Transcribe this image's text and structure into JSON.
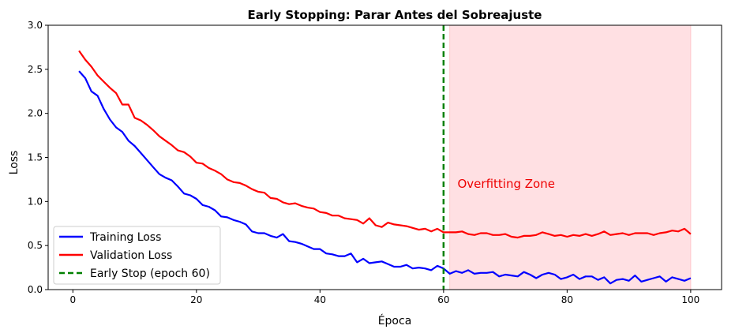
{
  "chart_data": {
    "type": "line",
    "title": "Early Stopping: Parar Antes del Sobreajuste",
    "xlabel": "Época",
    "ylabel": "Loss",
    "xlim": [
      -4,
      105
    ],
    "ylim": [
      0,
      3.0
    ],
    "xticks": [
      0,
      20,
      40,
      60,
      80,
      100
    ],
    "yticks": [
      0.0,
      0.5,
      1.0,
      1.5,
      2.0,
      2.5,
      3.0
    ],
    "xtick_labels": [
      "0",
      "20",
      "40",
      "60",
      "80",
      "100"
    ],
    "ytick_labels": [
      "0.0",
      "0.5",
      "1.0",
      "1.5",
      "2.0",
      "2.5",
      "3.0"
    ],
    "grid": false,
    "legend_position": "lower-left",
    "series": [
      {
        "name": "Training Loss",
        "color": "#0000ff",
        "x": [
          1,
          2,
          3,
          4,
          5,
          6,
          7,
          8,
          9,
          10,
          11,
          12,
          13,
          14,
          15,
          16,
          17,
          18,
          19,
          20,
          21,
          22,
          23,
          24,
          25,
          26,
          27,
          28,
          29,
          30,
          31,
          32,
          33,
          34,
          35,
          36,
          37,
          38,
          39,
          40,
          41,
          42,
          43,
          44,
          45,
          46,
          47,
          48,
          49,
          50,
          51,
          52,
          53,
          54,
          55,
          56,
          57,
          58,
          59,
          60,
          61,
          62,
          63,
          64,
          65,
          66,
          67,
          68,
          69,
          70,
          71,
          72,
          73,
          74,
          75,
          76,
          77,
          78,
          79,
          80,
          81,
          82,
          83,
          84,
          85,
          86,
          87,
          88,
          89,
          90,
          91,
          92,
          93,
          94,
          95,
          96,
          97,
          98,
          99,
          100
        ],
        "values": [
          2.48,
          2.4,
          2.25,
          2.2,
          2.05,
          1.93,
          1.84,
          1.79,
          1.69,
          1.63,
          1.55,
          1.47,
          1.39,
          1.31,
          1.27,
          1.24,
          1.17,
          1.09,
          1.07,
          1.03,
          0.96,
          0.94,
          0.9,
          0.83,
          0.82,
          0.79,
          0.77,
          0.74,
          0.66,
          0.64,
          0.64,
          0.61,
          0.59,
          0.63,
          0.55,
          0.54,
          0.52,
          0.49,
          0.46,
          0.46,
          0.41,
          0.4,
          0.38,
          0.38,
          0.41,
          0.31,
          0.35,
          0.3,
          0.31,
          0.32,
          0.29,
          0.26,
          0.26,
          0.28,
          0.24,
          0.25,
          0.24,
          0.22,
          0.27,
          0.24,
          0.18,
          0.21,
          0.19,
          0.22,
          0.18,
          0.19,
          0.19,
          0.2,
          0.15,
          0.17,
          0.16,
          0.15,
          0.2,
          0.17,
          0.13,
          0.17,
          0.19,
          0.17,
          0.12,
          0.14,
          0.17,
          0.12,
          0.15,
          0.15,
          0.11,
          0.14,
          0.07,
          0.11,
          0.12,
          0.1,
          0.16,
          0.09,
          0.11,
          0.13,
          0.15,
          0.09,
          0.14,
          0.12,
          0.1,
          0.13
        ]
      },
      {
        "name": "Validation Loss",
        "color": "#ff0000",
        "x": [
          1,
          2,
          3,
          4,
          5,
          6,
          7,
          8,
          9,
          10,
          11,
          12,
          13,
          14,
          15,
          16,
          17,
          18,
          19,
          20,
          21,
          22,
          23,
          24,
          25,
          26,
          27,
          28,
          29,
          30,
          31,
          32,
          33,
          34,
          35,
          36,
          37,
          38,
          39,
          40,
          41,
          42,
          43,
          44,
          45,
          46,
          47,
          48,
          49,
          50,
          51,
          52,
          53,
          54,
          55,
          56,
          57,
          58,
          59,
          60,
          61,
          62,
          63,
          64,
          65,
          66,
          67,
          68,
          69,
          70,
          71,
          72,
          73,
          74,
          75,
          76,
          77,
          78,
          79,
          80,
          81,
          82,
          83,
          84,
          85,
          86,
          87,
          88,
          89,
          90,
          91,
          92,
          93,
          94,
          95,
          96,
          97,
          98,
          99,
          100
        ],
        "values": [
          2.71,
          2.61,
          2.53,
          2.43,
          2.36,
          2.29,
          2.23,
          2.1,
          2.1,
          1.95,
          1.92,
          1.87,
          1.81,
          1.74,
          1.69,
          1.64,
          1.58,
          1.56,
          1.51,
          1.44,
          1.43,
          1.38,
          1.35,
          1.31,
          1.25,
          1.22,
          1.21,
          1.18,
          1.14,
          1.11,
          1.1,
          1.04,
          1.03,
          0.99,
          0.97,
          0.98,
          0.95,
          0.93,
          0.92,
          0.88,
          0.87,
          0.84,
          0.84,
          0.81,
          0.8,
          0.79,
          0.75,
          0.81,
          0.73,
          0.71,
          0.76,
          0.74,
          0.73,
          0.72,
          0.7,
          0.68,
          0.69,
          0.66,
          0.69,
          0.65,
          0.65,
          0.65,
          0.66,
          0.63,
          0.62,
          0.64,
          0.64,
          0.62,
          0.62,
          0.63,
          0.6,
          0.59,
          0.61,
          0.61,
          0.62,
          0.65,
          0.63,
          0.61,
          0.62,
          0.6,
          0.62,
          0.61,
          0.63,
          0.61,
          0.63,
          0.66,
          0.62,
          0.63,
          0.64,
          0.62,
          0.64,
          0.64,
          0.64,
          0.62,
          0.64,
          0.65,
          0.67,
          0.66,
          0.69,
          0.63
        ]
      }
    ],
    "early_stop": {
      "label": "Early Stop (epoch 60)",
      "x": 60,
      "color": "#008000"
    },
    "overfit_region": {
      "x_start": 61,
      "x_end": 100,
      "color": "#ffe0e3",
      "edge_color": "#ffc8cd"
    },
    "annotation": {
      "text": "Overfitting Zone",
      "x": 62,
      "y": 1.2,
      "color": "#ee0000"
    }
  }
}
